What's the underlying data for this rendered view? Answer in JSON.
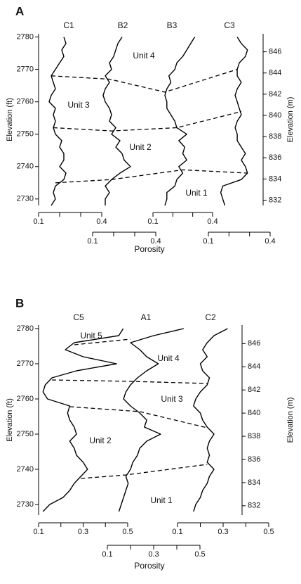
{
  "chart_data": [
    {
      "type": "line",
      "title": "A",
      "ylabel": "Elevation (ft)",
      "y2label": "Elevation (m)",
      "xlabel": "Porosity",
      "ylim": [
        2728,
        2781
      ],
      "yticks": [
        2730,
        2740,
        2750,
        2760,
        2770,
        2780
      ],
      "y2lim": [
        831.5,
        847.7
      ],
      "y2ticks": [
        832,
        834,
        836,
        838,
        840,
        842,
        844,
        846
      ],
      "y": [
        2728,
        2730,
        2732,
        2734,
        2736,
        2738,
        2740,
        2742,
        2744,
        2746,
        2748,
        2750,
        2752,
        2754,
        2756,
        2758,
        2760,
        2762,
        2764,
        2766,
        2768,
        2770,
        2772,
        2774,
        2776,
        2778,
        2780
      ],
      "series": [
        {
          "name": "C1",
          "color": "#000000",
          "xlim": [
            0.1,
            0.4
          ],
          "xticks": [
            0.1,
            0.4
          ],
          "xminorticks": [
            0.2,
            0.3
          ],
          "values": [
            0.16,
            0.18,
            0.17,
            0.18,
            0.22,
            0.23,
            0.2,
            0.22,
            0.22,
            0.2,
            0.21,
            0.18,
            0.17,
            0.18,
            0.17,
            0.18,
            0.15,
            0.16,
            0.18,
            0.17,
            0.16,
            0.18,
            0.2,
            0.22,
            0.21,
            0.23,
            0.22
          ]
        },
        {
          "name": "B2",
          "color": "#000000",
          "xlim": [
            0.1,
            0.4
          ],
          "xticks": [
            0.1,
            0.4
          ],
          "xminorticks": [
            0.2,
            0.3
          ],
          "values": [
            0.16,
            0.16,
            0.18,
            0.16,
            0.19,
            0.23,
            0.28,
            0.25,
            0.24,
            0.21,
            0.23,
            0.19,
            0.21,
            0.18,
            0.19,
            0.18,
            0.16,
            0.15,
            0.16,
            0.18,
            0.16,
            0.19,
            0.18,
            0.2,
            0.21,
            0.22,
            0.24
          ]
        },
        {
          "name": "B3",
          "color": "#000000",
          "xlim": [
            0.1,
            0.4
          ],
          "xticks": [
            0.1,
            0.4
          ],
          "xminorticks": [
            0.2,
            0.3
          ],
          "values": [
            0.16,
            0.17,
            0.17,
            0.21,
            0.22,
            0.25,
            0.23,
            0.27,
            0.25,
            0.26,
            0.23,
            0.27,
            0.22,
            0.21,
            0.19,
            0.17,
            0.17,
            0.16,
            0.17,
            0.19,
            0.18,
            0.21,
            0.22,
            0.25,
            0.27,
            0.29,
            0.31
          ]
        },
        {
          "name": "C3",
          "color": "#000000",
          "xlim": [
            0.1,
            0.4
          ],
          "xticks": [
            0.1,
            0.4
          ],
          "xminorticks": [
            0.2,
            0.3
          ],
          "values": [
            0.18,
            0.17,
            0.16,
            0.17,
            0.26,
            0.29,
            0.28,
            0.26,
            0.28,
            0.26,
            0.24,
            0.24,
            0.23,
            0.24,
            0.26,
            0.25,
            0.24,
            0.23,
            0.24,
            0.26,
            0.24,
            0.24,
            0.25,
            0.28,
            0.29,
            0.26,
            0.24
          ]
        }
      ],
      "boundaries": [
        [
          2768,
          2767,
          2763,
          2770
        ],
        [
          2752,
          2751,
          2752,
          2757
        ],
        [
          2735,
          2736,
          2739,
          2738
        ]
      ],
      "annotations": [
        "Unit 4",
        "Unit 3",
        "Unit 2",
        "Unit 1"
      ]
    },
    {
      "type": "line",
      "title": "B",
      "ylabel": "Elevation (ft)",
      "y2label": "Elevation (m)",
      "xlabel": "Porosity",
      "ylim": [
        2727,
        2781
      ],
      "yticks": [
        2730,
        2740,
        2750,
        2760,
        2770,
        2780
      ],
      "y2lim": [
        831.2,
        847.6
      ],
      "y2ticks": [
        832,
        834,
        836,
        838,
        840,
        842,
        844,
        846
      ],
      "y": [
        2728,
        2730,
        2732,
        2734,
        2736,
        2738,
        2740,
        2742,
        2744,
        2746,
        2748,
        2750,
        2752,
        2754,
        2756,
        2758,
        2760,
        2762,
        2764,
        2766,
        2768,
        2770,
        2772,
        2774,
        2776,
        2778,
        2780
      ],
      "series": [
        {
          "name": "C5",
          "color": "#000000",
          "xlim": [
            0.1,
            0.5
          ],
          "xticks": [
            0.1,
            0.3,
            0.5
          ],
          "xminorticks": [
            0.2,
            0.4
          ],
          "values": [
            0.12,
            0.15,
            0.21,
            0.24,
            0.26,
            0.29,
            0.32,
            0.3,
            0.27,
            0.26,
            0.24,
            0.27,
            0.26,
            0.24,
            0.23,
            0.24,
            0.14,
            0.12,
            0.13,
            0.16,
            0.27,
            0.45,
            0.3,
            0.22,
            0.26,
            0.46,
            0.48
          ]
        },
        {
          "name": "A1",
          "color": "#000000",
          "xlim": [
            0.1,
            0.5
          ],
          "xticks": [
            0.1,
            0.3,
            0.5
          ],
          "xminorticks": [
            0.2,
            0.4
          ],
          "values": [
            0.15,
            0.16,
            0.17,
            0.18,
            0.19,
            0.18,
            0.2,
            0.21,
            0.23,
            0.24,
            0.27,
            0.33,
            0.26,
            0.27,
            0.24,
            0.2,
            0.17,
            0.18,
            0.2,
            0.23,
            0.27,
            0.32,
            0.27,
            0.24,
            0.2,
            0.3,
            0.43
          ]
        },
        {
          "name": "C2",
          "color": "#000000",
          "xlim": [
            0.1,
            0.5
          ],
          "xticks": [
            0.1,
            0.3,
            0.5
          ],
          "xminorticks": [
            0.2,
            0.4
          ],
          "values": [
            0.17,
            0.18,
            0.2,
            0.21,
            0.23,
            0.24,
            0.26,
            0.23,
            0.24,
            0.23,
            0.24,
            0.26,
            0.23,
            0.21,
            0.2,
            0.17,
            0.18,
            0.2,
            0.23,
            0.24,
            0.21,
            0.2,
            0.23,
            0.21,
            0.23,
            0.26,
            0.32
          ]
        }
      ],
      "boundaries": [
        [
          2775.4,
          2777,
          null
        ],
        [
          2765.4,
          2765,
          2764.4
        ],
        [
          2757.8,
          2756.4,
          2751.8
        ],
        [
          2737.4,
          2738.4,
          2741.4
        ]
      ],
      "annotations": [
        "Unit 5",
        "Unit 4",
        "Unit 3",
        "Unit 2",
        "Unit 1"
      ]
    }
  ]
}
